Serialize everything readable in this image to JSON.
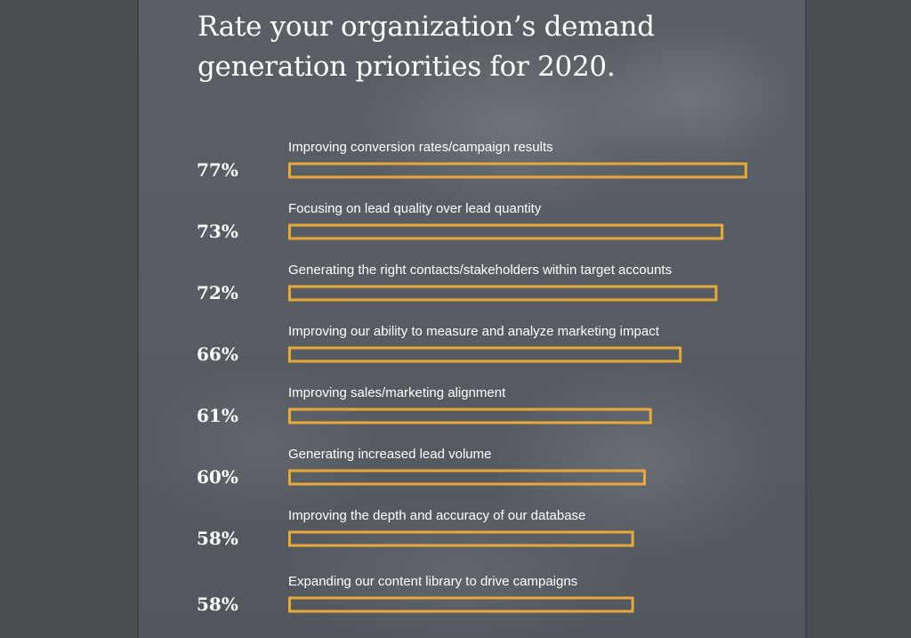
{
  "chart_data": {
    "type": "bar",
    "orientation": "horizontal",
    "title": "Rate your organization’s demand generation priorities for 2020.",
    "categories": [
      "Improving conversion rates/campaign results",
      "Focusing on lead quality over lead quantity",
      "Generating the right contacts/stakeholders within target accounts",
      "Improving our ability to measure and analyze marketing impact",
      "Improving sales/marketing alignment",
      "Generating increased lead volume",
      "Improving the depth and accuracy of our database",
      "Expanding our content library to drive campaigns"
    ],
    "values": [
      77,
      73,
      72,
      66,
      61,
      60,
      58,
      58
    ],
    "value_labels": [
      "77%",
      "73%",
      "72%",
      "66%",
      "61%",
      "60%",
      "58%",
      "58%"
    ],
    "unit": "%",
    "xlim": [
      0,
      100
    ],
    "grid": false,
    "legend": "none",
    "bar_style": "outlined",
    "bar_color": "#e8a93a"
  }
}
